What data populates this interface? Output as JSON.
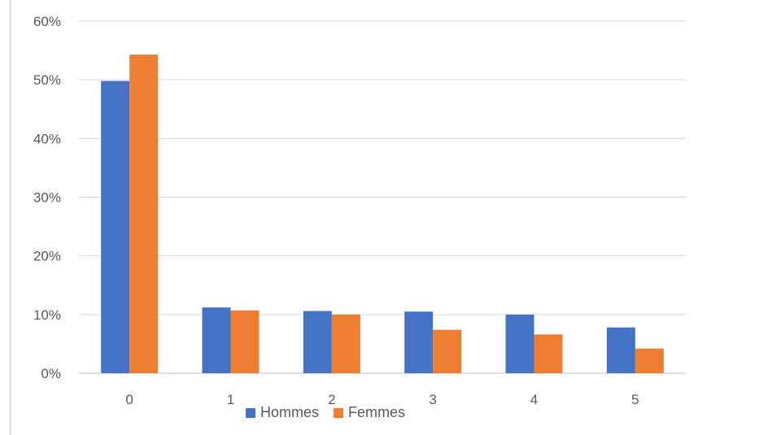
{
  "chart_data": {
    "type": "bar",
    "categories": [
      "0",
      "1",
      "2",
      "3",
      "4",
      "5"
    ],
    "series": [
      {
        "name": "Hommes",
        "color": "#4472C4",
        "values": [
          49.8,
          11.2,
          10.6,
          10.5,
          10.0,
          7.8
        ]
      },
      {
        "name": "Femmes",
        "color": "#ED7D31",
        "values": [
          54.3,
          10.7,
          10.0,
          7.4,
          6.6,
          4.2
        ]
      }
    ],
    "y_ticks": [
      "0%",
      "10%",
      "20%",
      "30%",
      "40%",
      "50%",
      "60%"
    ],
    "ylim": [
      0,
      60
    ],
    "grid": true,
    "legend_position": "bottom"
  }
}
